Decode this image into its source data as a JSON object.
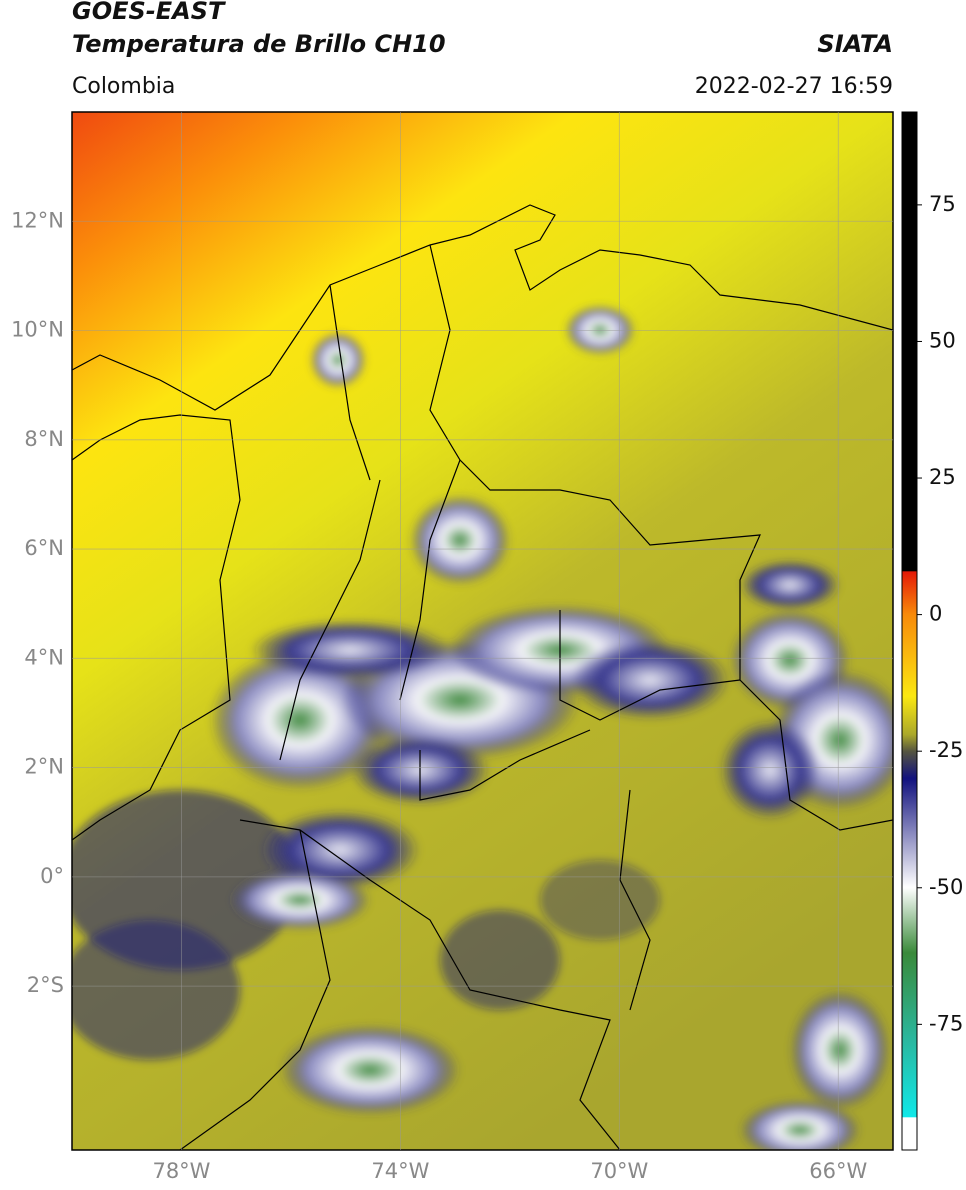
{
  "header": {
    "title": "GOES-EAST",
    "subtitle": "Temperatura de Brillo CH10",
    "region": "Colombia",
    "source": "SIATA",
    "timestamp": "2022-02-27 16:59"
  },
  "map": {
    "lonlim": [
      -80,
      -65
    ],
    "latlim": [
      -5,
      14
    ],
    "lat_ticks": [
      {
        "value": 12,
        "label": "12°N"
      },
      {
        "value": 10,
        "label": "10°N"
      },
      {
        "value": 8,
        "label": "8°N"
      },
      {
        "value": 6,
        "label": "6°N"
      },
      {
        "value": 4,
        "label": "4°N"
      },
      {
        "value": 2,
        "label": "2°N"
      },
      {
        "value": 0,
        "label": "0°"
      },
      {
        "value": -2,
        "label": "2°S"
      }
    ],
    "lon_ticks": [
      {
        "value": -78,
        "label": "78°W"
      },
      {
        "value": -74,
        "label": "74°W"
      },
      {
        "value": -70,
        "label": "70°W"
      },
      {
        "value": -66,
        "label": "66°W"
      }
    ]
  },
  "colorbar": {
    "range": [
      -98,
      92
    ],
    "ticks": [
      75,
      50,
      25,
      0,
      -25,
      -50,
      -75
    ]
  }
}
